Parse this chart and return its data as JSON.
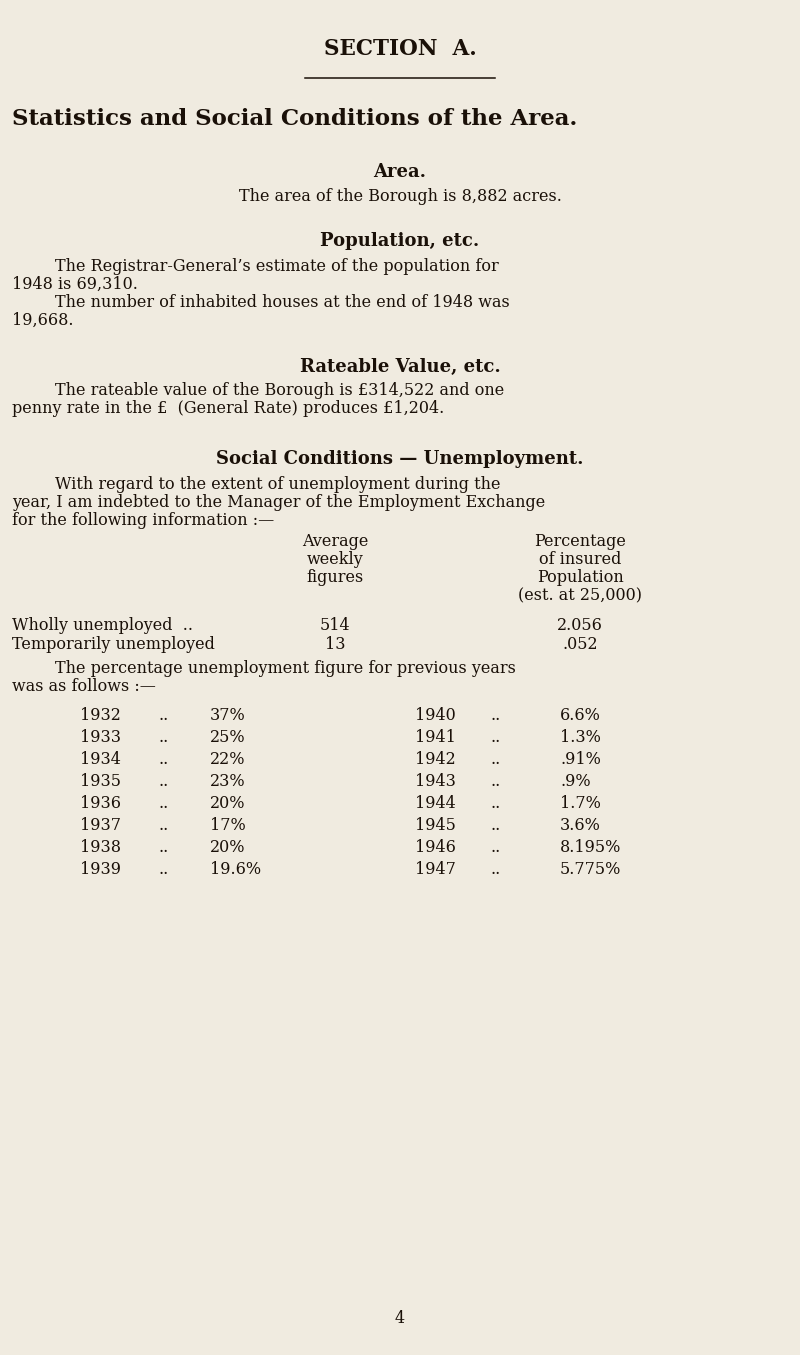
{
  "bg_color": "#f0ebe0",
  "text_color": "#1a1008",
  "section_title": "SECTION  A.",
  "main_title": "Statistics and Social Conditions of the Area.",
  "area_heading": "Area.",
  "area_text": "The area of the Borough is 8,882 acres.",
  "pop_heading": "Population, etc.",
  "rate_heading": "Rateable Value, etc.",
  "social_heading": "Social Conditions — Unemployment.",
  "col1_header": [
    "Average",
    "weekly",
    "figures"
  ],
  "col2_header": [
    "Percentage",
    "of insured",
    "Population",
    "(est. at 25,000)"
  ],
  "unemp_rows": [
    [
      "Wholly unemployed  ..",
      "514",
      "2.056"
    ],
    [
      "Temporarily unemployed",
      "13",
      ".052"
    ]
  ],
  "hist_left": [
    [
      "1932",
      "..",
      "37%"
    ],
    [
      "1933",
      "..",
      "25%"
    ],
    [
      "1934",
      "..",
      "22%"
    ],
    [
      "1935",
      "..",
      "23%"
    ],
    [
      "1936",
      "..",
      "20%"
    ],
    [
      "1937",
      "..",
      "17%"
    ],
    [
      "1938",
      "..",
      "20%"
    ],
    [
      "1939",
      "..",
      "19.6%"
    ]
  ],
  "hist_right": [
    [
      "1940",
      "..",
      "6.6%"
    ],
    [
      "1941",
      "..",
      "1.3%"
    ],
    [
      "1942",
      "..",
      ".91%"
    ],
    [
      "1943",
      "..",
      ".9%"
    ],
    [
      "1944",
      "..",
      "1.7%"
    ],
    [
      "1945",
      "..",
      "3.6%"
    ],
    [
      "1946",
      "..",
      "8.195%"
    ],
    [
      "1947",
      "..",
      "5.775%"
    ]
  ],
  "page_num": "4",
  "figw": 8.0,
  "figh": 13.55,
  "dpi": 100
}
